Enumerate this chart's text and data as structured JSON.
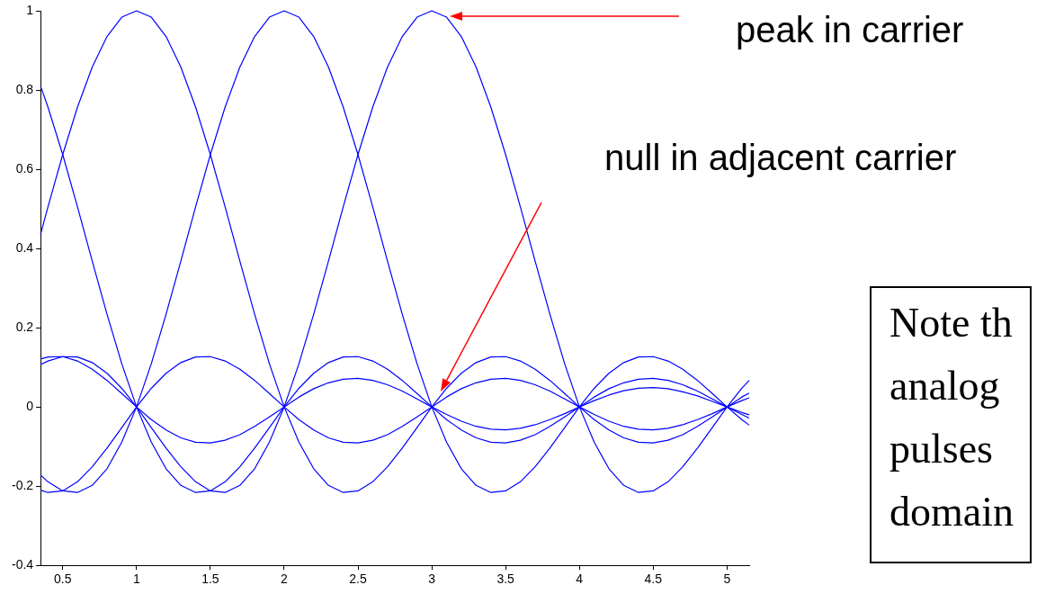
{
  "chart_data": {
    "type": "line",
    "x": [
      0.35,
      0.4,
      0.5,
      0.6,
      0.7,
      0.8,
      0.9,
      1,
      1.1,
      1.2,
      1.3,
      1.4,
      1.5,
      1.6,
      1.7,
      1.8,
      1.9,
      2,
      2.1,
      2.2,
      2.3,
      2.4,
      2.5,
      2.6,
      2.7,
      2.8,
      2.9,
      3,
      3.1,
      3.2,
      3.3,
      3.4,
      3.5,
      3.6,
      3.7,
      3.8,
      3.9,
      4,
      4.1,
      4.2,
      4.3,
      4.4,
      4.5,
      4.6,
      4.7,
      4.8,
      4.9,
      5,
      5.1,
      5.15
    ],
    "series": [
      {
        "color": "#0000ff",
        "values": [
          0.121,
          0.126,
          0.127,
          0.116,
          0.095,
          0.067,
          0.034,
          0,
          -0.032,
          -0.058,
          -0.078,
          -0.089,
          -0.091,
          -0.084,
          -0.07,
          -0.049,
          -0.025,
          0,
          0.025,
          0.046,
          0.061,
          0.07,
          0.072,
          0.067,
          0.056,
          0.04,
          0.02,
          0,
          -0.019,
          -0.036,
          -0.049,
          -0.056,
          -0.058,
          -0.054,
          -0.045,
          -0.032,
          -0.017,
          0,
          0.016,
          0.03,
          0.041,
          0.047,
          0.049,
          0.046,
          0.038,
          0.028,
          0.014,
          0,
          -0.014,
          -0.02
        ]
      },
      {
        "color": "#0000ff",
        "values": [
          -0.21,
          -0.216,
          -0.212,
          -0.189,
          -0.151,
          -0.104,
          -0.052,
          0,
          0.047,
          0.085,
          0.112,
          0.126,
          0.127,
          0.116,
          0.095,
          0.067,
          0.034,
          0,
          -0.032,
          -0.058,
          -0.078,
          -0.089,
          -0.091,
          -0.084,
          -0.07,
          -0.049,
          -0.025,
          0,
          0.025,
          0.046,
          0.061,
          0.07,
          0.072,
          0.067,
          0.056,
          0.04,
          0.02,
          0,
          -0.019,
          -0.036,
          -0.049,
          -0.056,
          -0.058,
          -0.054,
          -0.045,
          -0.032,
          -0.017,
          0,
          0.016,
          0.023
        ]
      },
      {
        "color": "#0000ff",
        "values": [
          0.81,
          0.757,
          0.637,
          0.505,
          0.368,
          0.234,
          0.109,
          0,
          -0.089,
          -0.156,
          -0.198,
          -0.216,
          -0.212,
          -0.189,
          -0.151,
          -0.104,
          -0.052,
          0,
          0.047,
          0.085,
          0.112,
          0.126,
          0.127,
          0.116,
          0.095,
          0.067,
          0.034,
          0,
          -0.032,
          -0.058,
          -0.078,
          -0.089,
          -0.091,
          -0.084,
          -0.07,
          -0.049,
          -0.025,
          0,
          0.025,
          0.046,
          0.061,
          0.07,
          0.072,
          0.067,
          0.056,
          0.04,
          0.02,
          0,
          -0.019,
          -0.028
        ]
      },
      {
        "color": "#0000ff",
        "values": [
          0.436,
          0.505,
          0.637,
          0.757,
          0.858,
          0.935,
          0.984,
          1,
          0.984,
          0.935,
          0.858,
          0.757,
          0.637,
          0.505,
          0.368,
          0.234,
          0.109,
          0,
          -0.089,
          -0.156,
          -0.198,
          -0.216,
          -0.212,
          -0.189,
          -0.151,
          -0.104,
          -0.052,
          0,
          0.047,
          0.085,
          0.112,
          0.126,
          0.127,
          0.116,
          0.095,
          0.067,
          0.034,
          0,
          -0.032,
          -0.058,
          -0.078,
          -0.089,
          -0.091,
          -0.084,
          -0.07,
          -0.049,
          -0.025,
          0,
          0.025,
          0.035
        ]
      },
      {
        "color": "#0000ff",
        "values": [
          -0.172,
          -0.189,
          -0.212,
          -0.216,
          -0.198,
          -0.156,
          -0.089,
          0,
          0.109,
          0.234,
          0.368,
          0.505,
          0.637,
          0.757,
          0.858,
          0.935,
          0.984,
          1,
          0.984,
          0.935,
          0.858,
          0.757,
          0.637,
          0.505,
          0.368,
          0.234,
          0.109,
          0,
          -0.089,
          -0.156,
          -0.198,
          -0.216,
          -0.212,
          -0.189,
          -0.151,
          -0.104,
          -0.052,
          0,
          0.047,
          0.085,
          0.112,
          0.126,
          0.127,
          0.116,
          0.095,
          0.067,
          0.034,
          0,
          -0.032,
          -0.046
        ]
      },
      {
        "color": "#0000ff",
        "values": [
          0.107,
          0.116,
          0.127,
          0.126,
          0.112,
          0.085,
          0.047,
          0,
          -0.052,
          -0.104,
          -0.151,
          -0.189,
          -0.212,
          -0.216,
          -0.198,
          -0.156,
          -0.089,
          0,
          0.109,
          0.234,
          0.368,
          0.505,
          0.637,
          0.757,
          0.858,
          0.935,
          0.984,
          1,
          0.984,
          0.935,
          0.858,
          0.757,
          0.637,
          0.505,
          0.368,
          0.234,
          0.109,
          0,
          -0.089,
          -0.156,
          -0.198,
          -0.216,
          -0.212,
          -0.189,
          -0.151,
          -0.104,
          -0.052,
          0,
          0.047,
          0.067
        ]
      }
    ],
    "xlim": [
      0.35,
      5.15
    ],
    "xticks": [
      0.5,
      1,
      1.5,
      2,
      2.5,
      3,
      3.5,
      4,
      4.5,
      5
    ],
    "ylim": [
      -0.4,
      1
    ],
    "yticks": [
      -0.4,
      -0.2,
      0,
      0.2,
      0.4,
      0.6,
      0.8,
      1
    ],
    "grid": false,
    "legend": false,
    "marker": "none",
    "line_style": "solid",
    "annotations": [
      "peak in carrier",
      "null in adjacent carrier",
      "Note th\nanalog\npulses\ndomain"
    ]
  }
}
